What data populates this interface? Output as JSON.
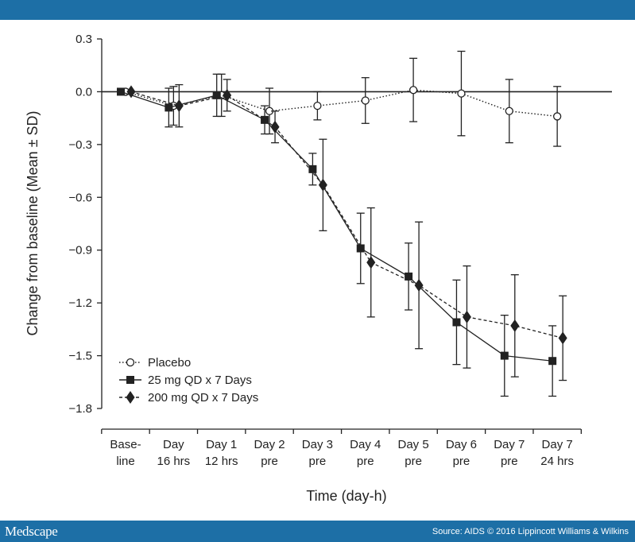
{
  "colors": {
    "bar": "#1d6fa6",
    "ink": "#222222"
  },
  "footer": {
    "logo": "Medscape",
    "source": "Source: AIDS © 2016 Lippincott Williams & Wilkins"
  },
  "chart_data": {
    "type": "line",
    "xlabel": "Time (day-h)",
    "ylabel": "Change from baseline (Mean ± SD)",
    "ylim": [
      -1.8,
      0.3
    ],
    "yticks": [
      0.3,
      0.0,
      -0.3,
      -0.6,
      -0.9,
      -1.2,
      -1.5,
      -1.8
    ],
    "ytick_labels": [
      "0.3",
      "0.0",
      "−0.3",
      "−0.6",
      "−0.9",
      "−1.2",
      "−1.5",
      "−1.8"
    ],
    "categories": [
      [
        "Base-",
        "line"
      ],
      [
        "Day",
        "16 hrs"
      ],
      [
        "Day 1",
        "12 hrs"
      ],
      [
        "Day 2",
        "pre"
      ],
      [
        "Day 3",
        "pre"
      ],
      [
        "Day 4",
        "pre"
      ],
      [
        "Day 5",
        "pre"
      ],
      [
        "Day 6",
        "pre"
      ],
      [
        "Day 7",
        "pre"
      ],
      [
        "Day 7",
        "24 hrs"
      ]
    ],
    "legend_position": "bottom-left",
    "series": [
      {
        "name": "Placebo",
        "marker": "circle",
        "line": "dotted",
        "values": [
          0.0,
          -0.08,
          -0.02,
          -0.11,
          -0.08,
          -0.05,
          0.01,
          -0.01,
          -0.11,
          -0.14
        ],
        "sd": [
          0.0,
          0.11,
          0.12,
          0.13,
          0.08,
          0.13,
          0.18,
          0.24,
          0.18,
          0.17
        ]
      },
      {
        "name": "25 mg QD x 7 Days",
        "marker": "square",
        "line": "solid",
        "values": [
          0.0,
          -0.09,
          -0.02,
          -0.16,
          -0.44,
          -0.89,
          -1.05,
          -1.31,
          -1.5,
          -1.53
        ],
        "sd": [
          0.0,
          0.11,
          0.12,
          0.08,
          0.09,
          0.2,
          0.19,
          0.24,
          0.23,
          0.2
        ]
      },
      {
        "name": "200 mg QD x 7 Days",
        "marker": "diamond",
        "line": "dashed",
        "values": [
          0.0,
          -0.08,
          -0.02,
          -0.2,
          -0.53,
          -0.97,
          -1.1,
          -1.28,
          -1.33,
          -1.4
        ],
        "sd": [
          0.0,
          0.12,
          0.09,
          0.09,
          0.26,
          0.31,
          0.36,
          0.29,
          0.29,
          0.24
        ]
      }
    ]
  }
}
